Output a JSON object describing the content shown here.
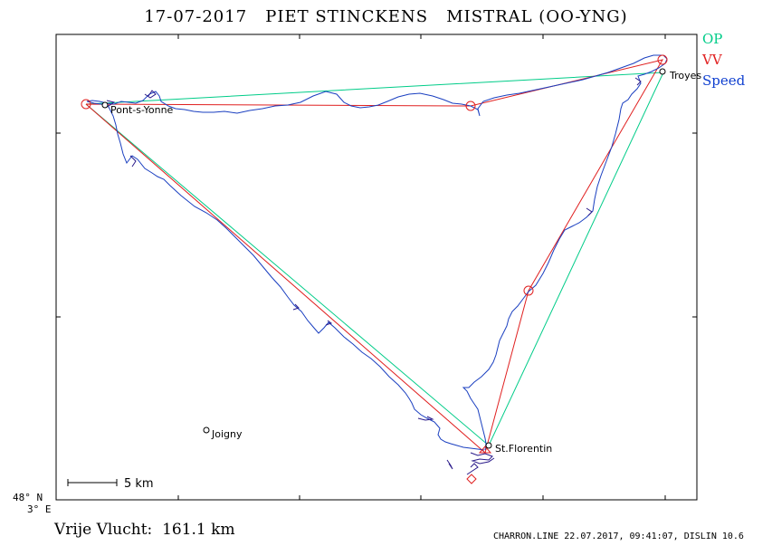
{
  "header": {
    "title": "17-07-2017   PIET STINCKENS   MISTRAL (OO-YNG)"
  },
  "legend": {
    "op": "OP",
    "vv": "VV",
    "speed": "Speed"
  },
  "axes": {
    "lat_label": "48° N",
    "lon_label": "3° E"
  },
  "places": [
    {
      "name": "Pont-s-Yonne"
    },
    {
      "name": "Troyes"
    },
    {
      "name": "St.Florentin"
    },
    {
      "name": "Joigny"
    }
  ],
  "scale": {
    "label": "5 km"
  },
  "result": {
    "distance": "Vrije Vlucht:  161.1 km"
  },
  "footer": {
    "text": "CHARRON.LINE 22.07.2017, 09:41:07, DISLIN 10.6"
  },
  "colors": {
    "op": "#00cc88",
    "vv": "#e02020",
    "track": "#1a3fc0",
    "track_dark": "#2a1a8a"
  }
}
